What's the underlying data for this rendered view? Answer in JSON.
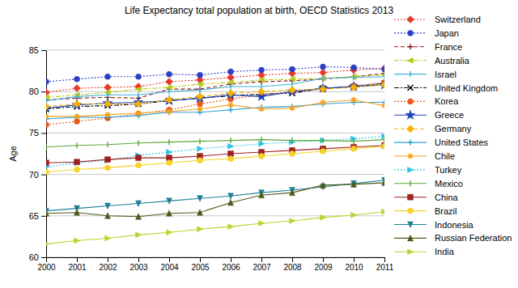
{
  "chart_data": {
    "type": "line",
    "title": "Life Expectancy total population at birth, OECD Statistics 2013",
    "y_label": "Age",
    "x": [
      2000,
      2001,
      2002,
      2003,
      2004,
      2005,
      2006,
      2007,
      2008,
      2009,
      2010,
      2011
    ],
    "xlim": [
      2000,
      2011
    ],
    "xticks": [
      2000,
      2001,
      2002,
      2003,
      2004,
      2005,
      2006,
      2007,
      2008,
      2009,
      2010,
      2011
    ],
    "ylim": [
      60,
      85
    ],
    "yticks": [
      60,
      65,
      70,
      75,
      80,
      85
    ],
    "grid": true,
    "legend": "right",
    "series": [
      {
        "name": "Switzerland",
        "color": "#e8392a",
        "marker": "diamond",
        "line_style": "dotted",
        "values": [
          79.9,
          80.4,
          80.5,
          80.6,
          81.2,
          81.4,
          81.7,
          82.0,
          82.2,
          82.3,
          82.6,
          82.8
        ]
      },
      {
        "name": "Japan",
        "color": "#2b3ec6",
        "marker": "circle",
        "line_style": "dotted",
        "values": [
          81.2,
          81.5,
          81.8,
          81.8,
          82.1,
          82.0,
          82.4,
          82.6,
          82.7,
          83.0,
          82.9,
          82.7
        ]
      },
      {
        "name": "France",
        "color": "#8b1a1a",
        "marker": "plus",
        "line_style": "dashed",
        "values": [
          79.0,
          79.2,
          79.3,
          79.2,
          80.3,
          80.3,
          80.9,
          81.2,
          81.3,
          81.5,
          81.8,
          82.2
        ]
      },
      {
        "name": "Australia",
        "color": "#b5cc18",
        "marker": "triangle-left",
        "line_style": "dashdot",
        "values": [
          79.3,
          79.6,
          79.9,
          80.3,
          80.5,
          80.9,
          81.1,
          81.4,
          81.5,
          81.6,
          81.8,
          82.0
        ]
      },
      {
        "name": "Israel",
        "color": "#3bb0d9",
        "marker": "vline",
        "line_style": "solid",
        "values": [
          78.9,
          79.4,
          79.6,
          79.6,
          80.0,
          80.2,
          80.6,
          80.6,
          80.9,
          81.6,
          81.7,
          81.8
        ]
      },
      {
        "name": "United Kingdom",
        "color": "#000000",
        "marker": "x",
        "line_style": "dashdot",
        "values": [
          77.9,
          78.2,
          78.3,
          78.5,
          78.9,
          79.2,
          79.5,
          79.7,
          79.8,
          80.4,
          80.6,
          81.0
        ]
      },
      {
        "name": "Korea",
        "color": "#e8581a",
        "marker": "circle",
        "line_style": "dotted",
        "values": [
          76.0,
          76.4,
          76.8,
          77.3,
          77.8,
          78.5,
          79.1,
          79.6,
          80.0,
          80.3,
          80.7,
          81.1
        ]
      },
      {
        "name": "Greece",
        "color": "#1b3fb8",
        "marker": "star",
        "line_style": "solid",
        "values": [
          78.0,
          78.4,
          78.6,
          78.7,
          78.9,
          79.2,
          79.6,
          79.4,
          80.0,
          80.4,
          80.6,
          80.8
        ]
      },
      {
        "name": "Germany",
        "color": "#f5b000",
        "marker": "diamond",
        "line_style": "dashed",
        "values": [
          78.2,
          78.5,
          78.5,
          78.5,
          79.0,
          79.4,
          79.8,
          80.0,
          80.2,
          80.3,
          80.5,
          80.8
        ]
      },
      {
        "name": "United States",
        "color": "#2a9fd6",
        "marker": "cross",
        "line_style": "solid",
        "values": [
          76.7,
          76.9,
          76.9,
          77.1,
          77.5,
          77.5,
          77.8,
          78.1,
          78.2,
          78.5,
          78.7,
          78.7
        ]
      },
      {
        "name": "Chile",
        "color": "#f7a21b",
        "marker": "asterisk",
        "line_style": "solid",
        "values": [
          77.0,
          77.0,
          77.2,
          77.4,
          77.6,
          77.9,
          78.4,
          77.9,
          78.0,
          78.7,
          79.0,
          78.3
        ]
      },
      {
        "name": "Turkey",
        "color": "#2ec4e8",
        "marker": "triangle-right",
        "line_style": "dotted",
        "values": [
          70.9,
          71.4,
          71.7,
          72.3,
          72.7,
          73.1,
          73.4,
          73.7,
          73.9,
          74.1,
          74.3,
          74.6
        ]
      },
      {
        "name": "Mexico",
        "color": "#5aa532",
        "marker": "vline",
        "line_style": "solid",
        "values": [
          73.3,
          73.5,
          73.6,
          73.8,
          73.9,
          74.0,
          74.1,
          74.2,
          74.1,
          74.1,
          74.0,
          74.2
        ]
      },
      {
        "name": "China",
        "color": "#a02020",
        "marker": "square",
        "line_style": "solid",
        "values": [
          71.4,
          71.5,
          71.8,
          72.0,
          72.0,
          72.2,
          72.5,
          72.7,
          72.9,
          73.1,
          73.3,
          73.5
        ]
      },
      {
        "name": "Brazil",
        "color": "#f5d327",
        "marker": "circle",
        "line_style": "solid",
        "values": [
          70.3,
          70.6,
          70.8,
          71.1,
          71.4,
          71.7,
          71.9,
          72.2,
          72.5,
          72.8,
          73.1,
          73.4
        ]
      },
      {
        "name": "Indonesia",
        "color": "#1d7f99",
        "marker": "triangle-down",
        "line_style": "solid",
        "values": [
          65.6,
          65.9,
          66.2,
          66.5,
          66.8,
          67.1,
          67.4,
          67.8,
          68.1,
          68.5,
          68.9,
          69.3
        ]
      },
      {
        "name": "Russian Federation",
        "color": "#4a5a1a",
        "marker": "triangle-up",
        "line_style": "solid",
        "values": [
          65.3,
          65.4,
          65.0,
          64.9,
          65.3,
          65.4,
          66.6,
          67.5,
          67.8,
          68.7,
          68.8,
          69.0
        ]
      },
      {
        "name": "India",
        "color": "#b8d530",
        "marker": "triangle-right",
        "line_style": "solid",
        "values": [
          61.6,
          62.0,
          62.3,
          62.7,
          63.0,
          63.4,
          63.7,
          64.1,
          64.4,
          64.8,
          65.1,
          65.5
        ]
      }
    ]
  }
}
